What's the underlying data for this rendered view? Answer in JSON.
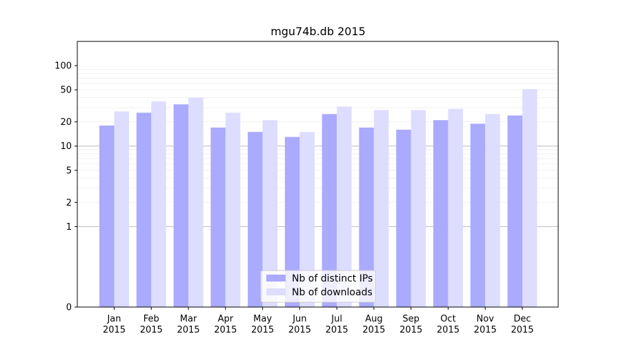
{
  "chart_data": {
    "type": "bar",
    "title": "mgu74b.db 2015",
    "xlabel": "",
    "ylabel": "",
    "yscale": "symlog",
    "ylim": [
      0,
      200
    ],
    "y_ticks": [
      0,
      1,
      2,
      5,
      10,
      20,
      50,
      100
    ],
    "categories": [
      [
        "Jan",
        "2015"
      ],
      [
        "Feb",
        "2015"
      ],
      [
        "Mar",
        "2015"
      ],
      [
        "Apr",
        "2015"
      ],
      [
        "May",
        "2015"
      ],
      [
        "Jun",
        "2015"
      ],
      [
        "Jul",
        "2015"
      ],
      [
        "Aug",
        "2015"
      ],
      [
        "Sep",
        "2015"
      ],
      [
        "Oct",
        "2015"
      ],
      [
        "Nov",
        "2015"
      ],
      [
        "Dec",
        "2015"
      ]
    ],
    "series": [
      {
        "name": "Nb of distinct IPs",
        "color": "#aaaaff",
        "values": [
          18,
          26,
          33,
          17,
          15,
          13,
          25,
          17,
          16,
          21,
          19,
          24
        ]
      },
      {
        "name": "Nb of downloads",
        "color": "#ddddff",
        "values": [
          27,
          36,
          40,
          26,
          21,
          15,
          31,
          28,
          28,
          29,
          25,
          51
        ]
      }
    ],
    "grid": true,
    "legend_position": "bottom-center"
  }
}
